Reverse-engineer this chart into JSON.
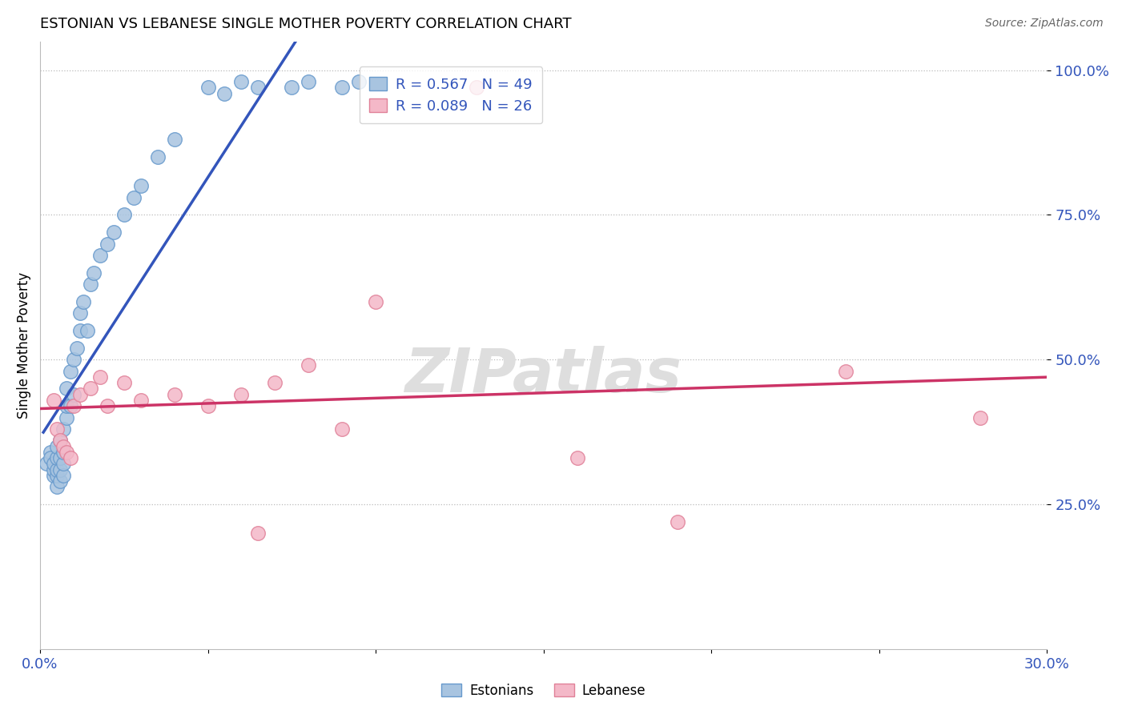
{
  "title": "ESTONIAN VS LEBANESE SINGLE MOTHER POVERTY CORRELATION CHART",
  "source": "Source: ZipAtlas.com",
  "ylabel": "Single Mother Poverty",
  "xlim": [
    0.0,
    0.3
  ],
  "ylim": [
    0.0,
    1.05
  ],
  "xtick_positions": [
    0.0,
    0.05,
    0.1,
    0.15,
    0.2,
    0.25,
    0.3
  ],
  "xtick_labels": [
    "0.0%",
    "",
    "",
    "",
    "",
    "",
    "30.0%"
  ],
  "ytick_positions": [
    0.25,
    0.5,
    0.75,
    1.0
  ],
  "ytick_labels": [
    "25.0%",
    "50.0%",
    "75.0%",
    "100.0%"
  ],
  "R_estonian": 0.567,
  "N_estonian": 49,
  "R_lebanese": 0.089,
  "N_lebanese": 26,
  "estonian_color": "#a8c4e0",
  "estonian_edge": "#6699cc",
  "lebanese_color": "#f4b8c8",
  "lebanese_edge": "#e08098",
  "trendline_estonian_color": "#3355bb",
  "trendline_lebanese_color": "#cc3366",
  "estonian_x": [
    0.002,
    0.003,
    0.003,
    0.004,
    0.004,
    0.004,
    0.005,
    0.005,
    0.005,
    0.005,
    0.005,
    0.006,
    0.006,
    0.006,
    0.006,
    0.007,
    0.007,
    0.007,
    0.007,
    0.008,
    0.008,
    0.008,
    0.009,
    0.009,
    0.01,
    0.01,
    0.011,
    0.012,
    0.012,
    0.013,
    0.014,
    0.015,
    0.016,
    0.018,
    0.02,
    0.022,
    0.025,
    0.028,
    0.03,
    0.035,
    0.04,
    0.05,
    0.055,
    0.06,
    0.065,
    0.075,
    0.08,
    0.09,
    0.095
  ],
  "estonian_y": [
    0.32,
    0.34,
    0.33,
    0.3,
    0.31,
    0.32,
    0.28,
    0.3,
    0.31,
    0.33,
    0.35,
    0.29,
    0.31,
    0.33,
    0.36,
    0.3,
    0.32,
    0.34,
    0.38,
    0.4,
    0.42,
    0.45,
    0.42,
    0.48,
    0.44,
    0.5,
    0.52,
    0.55,
    0.58,
    0.6,
    0.55,
    0.63,
    0.65,
    0.68,
    0.7,
    0.72,
    0.75,
    0.78,
    0.8,
    0.85,
    0.88,
    0.97,
    0.96,
    0.98,
    0.97,
    0.97,
    0.98,
    0.97,
    0.98
  ],
  "lebanese_x": [
    0.004,
    0.005,
    0.006,
    0.007,
    0.008,
    0.009,
    0.01,
    0.012,
    0.015,
    0.018,
    0.02,
    0.025,
    0.03,
    0.04,
    0.05,
    0.06,
    0.065,
    0.07,
    0.08,
    0.09,
    0.1,
    0.13,
    0.16,
    0.19,
    0.24,
    0.28
  ],
  "lebanese_y": [
    0.43,
    0.38,
    0.36,
    0.35,
    0.34,
    0.33,
    0.42,
    0.44,
    0.45,
    0.47,
    0.42,
    0.46,
    0.43,
    0.44,
    0.42,
    0.44,
    0.2,
    0.46,
    0.49,
    0.38,
    0.6,
    0.97,
    0.33,
    0.22,
    0.48,
    0.4
  ]
}
